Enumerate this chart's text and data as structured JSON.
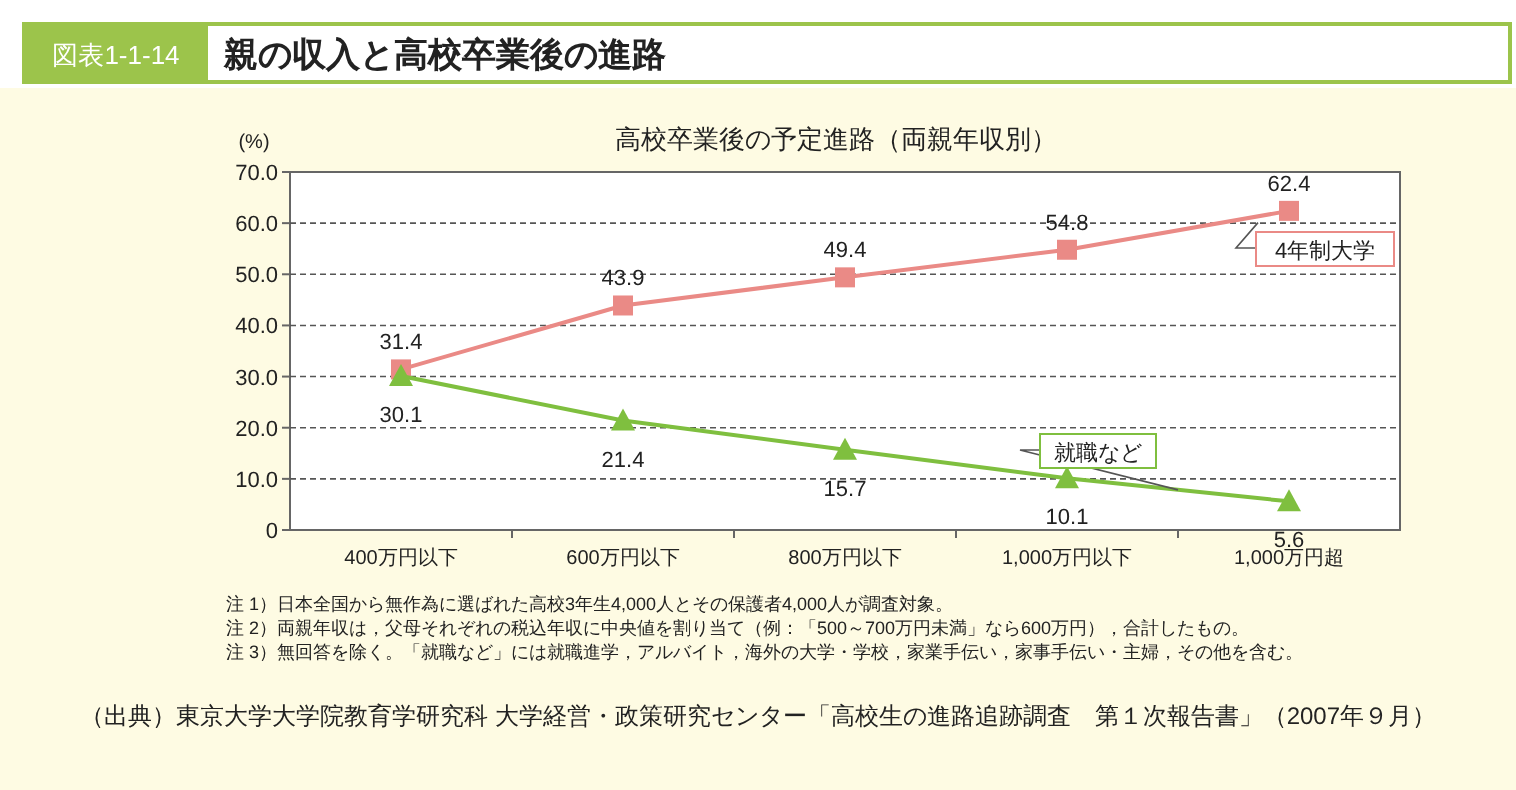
{
  "chart_data": {
    "type": "line",
    "title": "親の収入と高校卒業後の進路",
    "subtitle": "高校卒業後の予定進路（両親年収別）",
    "ylabel": "(%)",
    "categories": [
      "400万円以下",
      "600万円以下",
      "800万円以下",
      "1,000万円以下",
      "1,000万円超"
    ],
    "series": [
      {
        "name": "4年制大学",
        "color": "#ea8a86",
        "marker": "square",
        "values": [
          31.4,
          43.9,
          49.4,
          54.8,
          62.4
        ]
      },
      {
        "name": "就職など",
        "color": "#7fbf3f",
        "marker": "triangle",
        "values": [
          30.1,
          21.4,
          15.7,
          10.1,
          5.6
        ]
      }
    ],
    "ylim": [
      0,
      70
    ],
    "yticks": [
      0,
      {
        "value": 10,
        "label": "10.0"
      },
      {
        "value": 20,
        "label": "20.0"
      },
      {
        "value": 30,
        "label": "30.0"
      },
      {
        "value": 40,
        "label": "40.0"
      },
      {
        "value": 50,
        "label": "50.0"
      },
      {
        "value": 60,
        "label": "60.0"
      },
      {
        "value": 70,
        "label": "70.0"
      }
    ],
    "grid": "y",
    "data_labels": true,
    "line_style": "solid",
    "annotations": [
      "図表1-1-14",
      "注 1）日本全国から無作為に選ばれた高校3年生4,000人とその保護者4,000人が調査対象。",
      "注 2）両親年収は，父母それぞれの税込年収に中央値を割り当て（例：「500～700万円未満」なら600万円），合計したもの。",
      "注 3）無回答を除く。「就職など」には就職進学，アルバイト，海外の大学・学校，家業手伝い，家事手伝い・主婦，その他を含む。",
      "（出典）東京大学大学院教育学研究科 大学経営・政策研究センター「高校生の進路追跡調査　第１次報告書」（2007年９月）"
    ]
  }
}
